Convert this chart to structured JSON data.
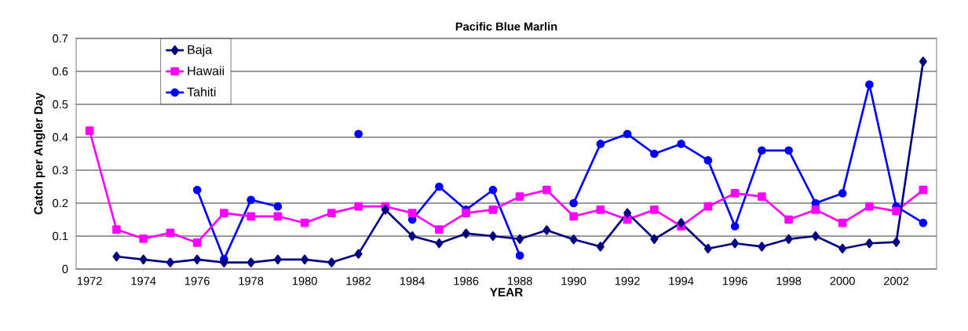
{
  "chart_data": {
    "type": "line",
    "title": "Pacific Blue Marlin",
    "xlabel": "YEAR",
    "ylabel": "Catch per Angler Day",
    "x": [
      1972,
      1973,
      1974,
      1975,
      1976,
      1977,
      1978,
      1979,
      1980,
      1981,
      1982,
      1983,
      1984,
      1985,
      1986,
      1987,
      1988,
      1989,
      1990,
      1991,
      1992,
      1993,
      1994,
      1995,
      1996,
      1997,
      1998,
      1999,
      2000,
      2001,
      2002,
      2003
    ],
    "series": [
      {
        "name": "Baja",
        "color": "#000080",
        "marker": "diamond",
        "values": [
          null,
          0.038,
          0.029,
          0.02,
          0.029,
          0.02,
          0.02,
          0.029,
          0.029,
          0.02,
          0.046,
          0.18,
          0.1,
          0.078,
          0.108,
          0.1,
          0.091,
          0.118,
          0.09,
          0.068,
          0.17,
          0.091,
          0.14,
          0.062,
          0.078,
          0.068,
          0.091,
          0.1,
          0.062,
          0.078,
          0.082,
          0.63
        ]
      },
      {
        "name": "Hawaii",
        "color": "#ff00ff",
        "marker": "square",
        "values": [
          0.42,
          0.12,
          0.092,
          0.11,
          0.08,
          0.17,
          0.16,
          0.16,
          0.14,
          0.17,
          0.19,
          0.19,
          0.17,
          0.12,
          0.17,
          0.18,
          0.22,
          0.24,
          0.16,
          0.18,
          0.15,
          0.18,
          0.13,
          0.19,
          0.23,
          0.22,
          0.15,
          0.18,
          0.14,
          0.19,
          0.176,
          0.24
        ]
      },
      {
        "name": "Tahiti",
        "color": "#0000ff",
        "marker": "circle",
        "values": [
          null,
          null,
          null,
          null,
          0.24,
          0.03,
          0.21,
          0.19,
          null,
          null,
          0.41,
          null,
          0.15,
          0.25,
          0.18,
          0.24,
          0.041,
          null,
          0.2,
          0.38,
          0.41,
          0.35,
          0.38,
          0.33,
          0.13,
          0.36,
          0.36,
          0.2,
          0.23,
          0.56,
          0.19,
          0.14
        ]
      }
    ],
    "xlim": [
      1971.5,
      2003.5
    ],
    "xticks": [
      1972,
      1974,
      1976,
      1978,
      1980,
      1982,
      1984,
      1986,
      1988,
      1990,
      1992,
      1994,
      1996,
      1998,
      2000,
      2002
    ],
    "ylim": [
      0,
      0.7
    ],
    "yticks": [
      0,
      0.1,
      0.2,
      0.3,
      0.4,
      0.5,
      0.6,
      0.7
    ],
    "grid": "y",
    "legend": "top left",
    "line_style": "solid"
  }
}
